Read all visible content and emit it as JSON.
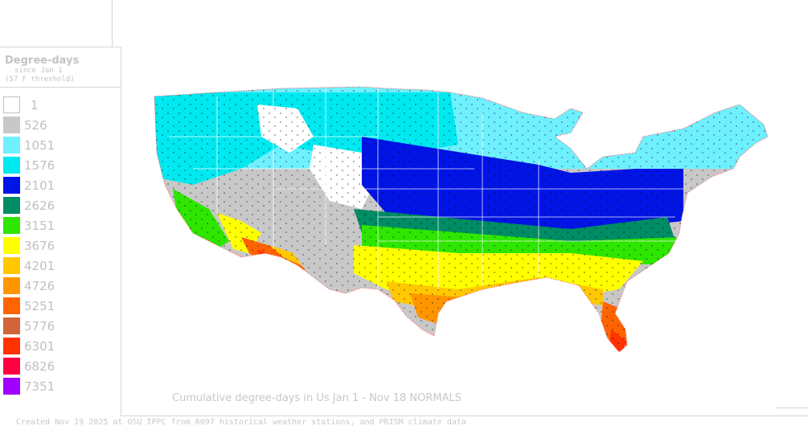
{
  "legend": {
    "title": "Degree-days",
    "subtitle_line1": "since Jan 1",
    "subtitle_line2": "(57 F threshold)",
    "items": [
      {
        "label": "1",
        "color": "#ffffff"
      },
      {
        "label": "526",
        "color": "#c8c8c8"
      },
      {
        "label": "1051",
        "color": "#6ff0ff"
      },
      {
        "label": "1576",
        "color": "#00e8f0"
      },
      {
        "label": "2101",
        "color": "#0014e6"
      },
      {
        "label": "2626",
        "color": "#008c64"
      },
      {
        "label": "3151",
        "color": "#2ee600"
      },
      {
        "label": "3676",
        "color": "#ffff00"
      },
      {
        "label": "4201",
        "color": "#ffc800"
      },
      {
        "label": "4726",
        "color": "#ff9600"
      },
      {
        "label": "5251",
        "color": "#ff6400"
      },
      {
        "label": "5776",
        "color": "#d2643c"
      },
      {
        "label": "6301",
        "color": "#ff3200"
      },
      {
        "label": "6826",
        "color": "#ff0040"
      },
      {
        "label": "7351",
        "color": "#a000ff"
      }
    ]
  },
  "map": {
    "title": "Cumulative degree-days in Us  Jan 1 - Nov 18 NORMALS",
    "credit": "Created Nov 19 2025 at OSU IPPC from 6097 historical weather stations, and PRISM climate data"
  }
}
